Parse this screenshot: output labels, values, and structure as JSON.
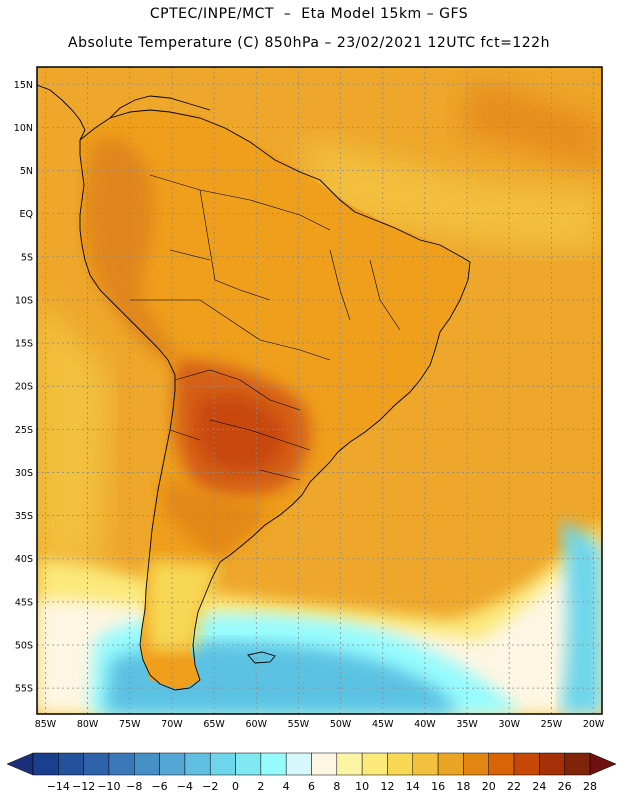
{
  "titles": {
    "line1": "CPTEC/INPE/MCT  –  Eta Model 15km – GFS",
    "line2": "Absolute Temperature (C) 850hPa – 23/02/2021 12UTC fct=122h"
  },
  "axes": {
    "lat_labels": [
      "15N",
      "10N",
      "5N",
      "EQ",
      "5S",
      "10S",
      "15S",
      "20S",
      "25S",
      "30S",
      "35S",
      "40S",
      "45S",
      "50S",
      "55S"
    ],
    "lat_values": [
      15,
      10,
      5,
      0,
      -5,
      -10,
      -15,
      -20,
      -25,
      -30,
      -35,
      -40,
      -45,
      -50,
      -55
    ],
    "lon_labels": [
      "85W",
      "80W",
      "75W",
      "70W",
      "65W",
      "60W",
      "55W",
      "50W",
      "45W",
      "40W",
      "35W",
      "30W",
      "25W",
      "20W"
    ],
    "lon_values": [
      -85,
      -80,
      -75,
      -70,
      -65,
      -60,
      -55,
      -50,
      -45,
      -40,
      -35,
      -30,
      -25,
      -20
    ],
    "lat_range": [
      -58,
      17
    ],
    "lon_range": [
      -86,
      -19
    ]
  },
  "colorbar": {
    "labels": [
      "-14",
      "-12",
      "-10",
      "-8",
      "-6",
      "-4",
      "-2",
      "0",
      "2",
      "4",
      "6",
      "8",
      "10",
      "12",
      "14",
      "16",
      "18",
      "20",
      "22",
      "24",
      "26",
      "28"
    ],
    "colors": [
      "#1a3f8e",
      "#24519c",
      "#2e63ab",
      "#3a78ba",
      "#4690c8",
      "#54a8d6",
      "#60bee0",
      "#6ed6ea",
      "#80e8f0",
      "#96fbfd",
      "#d6f7fb",
      "#fdf6e2",
      "#fcf5a6",
      "#fbe97a",
      "#f7d855",
      "#f2c13e",
      "#eaa423",
      "#e38712",
      "#d96408",
      "#c74707",
      "#a63108",
      "#7f2408"
    ],
    "under_color": "#1b2f7a",
    "over_color": "#6e1010"
  },
  "map_colors": {
    "ocean_north": "#eea72a",
    "land_base": "#ef9f1c",
    "hot_interior": "#d55e12",
    "warm": "#e1861b",
    "cool_south": "#fbe97a",
    "cold_south": "#5cc2e3",
    "coast_line": "#000000",
    "grid_line": "#8a8a8a"
  }
}
